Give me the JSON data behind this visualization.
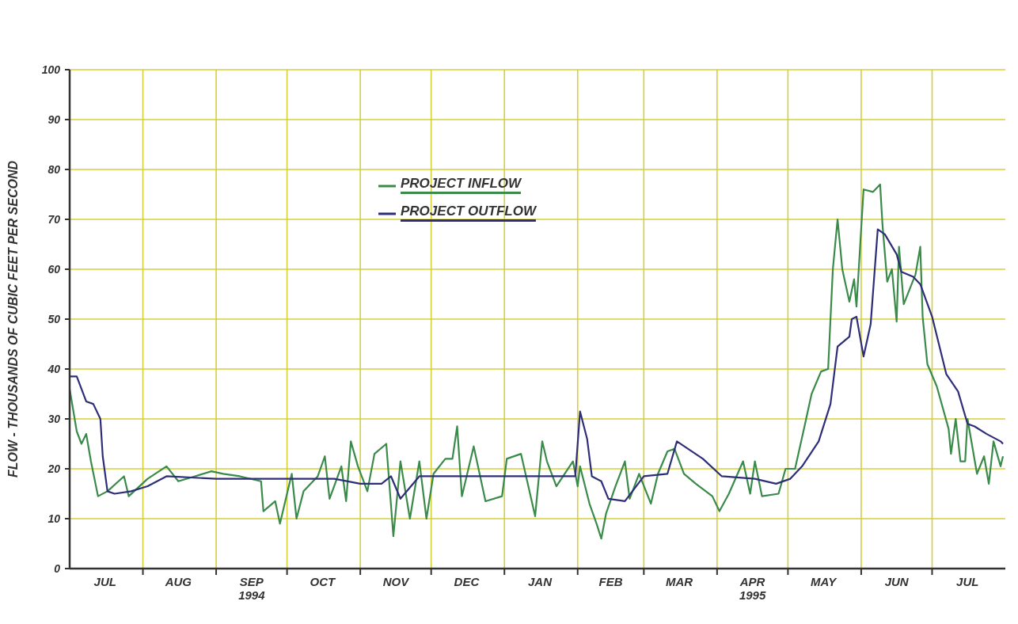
{
  "chart_data": {
    "type": "line",
    "ylabel": "FLOW - THOUSANDS OF CUBIC FEET PER SECOND",
    "xlim": [
      "1994-07-01",
      "1995-08-01"
    ],
    "xticks": [
      {
        "value": "1994-07-16",
        "label": "JUL"
      },
      {
        "value": "1994-08-01",
        "label": null
      },
      {
        "value": "1994-08-16",
        "label": "AUG"
      },
      {
        "value": "1994-09-01",
        "label": null
      },
      {
        "value": "1994-09-16",
        "label": "SEP\n1994"
      },
      {
        "value": "1994-10-01",
        "label": null
      },
      {
        "value": "1994-10-16",
        "label": "OCT"
      },
      {
        "value": "1994-11-01",
        "label": null
      },
      {
        "value": "1994-11-16",
        "label": "NOV"
      },
      {
        "value": "1994-12-01",
        "label": null
      },
      {
        "value": "1994-12-16",
        "label": "DEC"
      },
      {
        "value": "1995-01-01",
        "label": null
      },
      {
        "value": "1995-01-16",
        "label": "JAN"
      },
      {
        "value": "1995-02-01",
        "label": null
      },
      {
        "value": "1995-02-15",
        "label": "FEB"
      },
      {
        "value": "1995-03-01",
        "label": null
      },
      {
        "value": "1995-03-16",
        "label": "MAR"
      },
      {
        "value": "1995-04-01",
        "label": null
      },
      {
        "value": "1995-04-16",
        "label": "APR\n1995"
      },
      {
        "value": "1995-05-01",
        "label": null
      },
      {
        "value": "1995-05-16",
        "label": "MAY"
      },
      {
        "value": "1995-06-01",
        "label": null
      },
      {
        "value": "1995-06-16",
        "label": "JUN"
      },
      {
        "value": "1995-07-01",
        "label": null
      },
      {
        "value": "1995-07-16",
        "label": "JUL"
      }
    ],
    "ylim": [
      0,
      100
    ],
    "yticks": [
      0,
      10,
      20,
      30,
      40,
      50,
      60,
      70,
      80,
      90,
      100
    ],
    "grid": true,
    "legend": "top",
    "marker": "none",
    "line_style": "solid",
    "series": [
      {
        "name": "PROJECT INFLOW",
        "color": "#3a8a4a",
        "x": [
          "1994-07-01",
          "1994-07-04",
          "1994-07-06",
          "1994-07-08",
          "1994-07-10",
          "1994-07-13",
          "1994-07-17",
          "1994-07-24",
          "1994-07-26",
          "1994-08-03",
          "1994-08-11",
          "1994-08-16",
          "1994-08-23",
          "1994-08-30",
          "1994-09-04",
          "1994-09-11",
          "1994-09-20",
          "1994-09-21",
          "1994-09-26",
          "1994-09-28",
          "1994-10-03",
          "1994-10-05",
          "1994-10-08",
          "1994-10-14",
          "1994-10-17",
          "1994-10-19",
          "1994-10-24",
          "1994-10-26",
          "1994-10-28",
          "1994-10-31",
          "1994-11-04",
          "1994-11-07",
          "1994-11-12",
          "1994-11-15",
          "1994-11-18",
          "1994-11-22",
          "1994-11-26",
          "1994-11-29",
          "1994-12-02",
          "1994-12-07",
          "1994-12-10",
          "1994-12-12",
          "1994-12-14",
          "1994-12-19",
          "1994-12-24",
          "1994-12-31",
          "1995-01-02",
          "1995-01-08",
          "1995-01-14",
          "1995-01-17",
          "1995-01-19",
          "1995-01-23",
          "1995-01-30",
          "1995-02-01",
          "1995-02-02",
          "1995-02-06",
          "1995-02-09",
          "1995-02-11",
          "1995-02-13",
          "1995-02-17",
          "1995-02-21",
          "1995-02-23",
          "1995-02-27",
          "1995-03-04",
          "1995-03-07",
          "1995-03-11",
          "1995-03-14",
          "1995-03-18",
          "1995-03-23",
          "1995-03-30",
          "1995-04-02",
          "1995-04-06",
          "1995-04-12",
          "1995-04-15",
          "1995-04-17",
          "1995-04-20",
          "1995-04-27",
          "1995-04-30",
          "1995-05-04",
          "1995-05-08",
          "1995-05-11",
          "1995-05-15",
          "1995-05-18",
          "1995-05-20",
          "1995-05-22",
          "1995-05-24",
          "1995-05-27",
          "1995-05-29",
          "1995-05-30",
          "1995-06-02",
          "1995-06-06",
          "1995-06-09",
          "1995-06-10",
          "1995-06-12",
          "1995-06-14",
          "1995-06-16",
          "1995-06-17",
          "1995-06-19",
          "1995-06-24",
          "1995-06-26",
          "1995-06-27",
          "1995-06-29",
          "1995-07-03",
          "1995-07-08",
          "1995-07-09",
          "1995-07-11",
          "1995-07-13",
          "1995-07-15",
          "1995-07-16",
          "1995-07-20",
          "1995-07-23",
          "1995-07-25",
          "1995-07-27",
          "1995-07-30",
          "1995-07-31"
        ],
        "values": [
          36,
          27.5,
          25,
          27,
          21.5,
          14.5,
          15.5,
          18.5,
          14.5,
          18,
          20.5,
          17.5,
          18.5,
          19.5,
          19,
          18.5,
          17.5,
          11.5,
          13.5,
          9,
          19,
          10,
          15.5,
          18.5,
          22.5,
          14,
          20.5,
          13.5,
          25.5,
          20.5,
          15.5,
          23,
          25,
          6.5,
          21.5,
          10,
          21.5,
          10,
          19,
          22,
          22,
          28.5,
          14.5,
          24.5,
          13.5,
          14.5,
          22,
          23,
          10.5,
          25.5,
          21.5,
          16.5,
          21.5,
          16.5,
          20.5,
          13,
          9,
          6,
          11,
          16.5,
          21.5,
          14,
          19,
          13,
          19,
          23.5,
          24,
          19,
          17,
          14.5,
          11.5,
          15,
          21.5,
          15,
          21.5,
          14.5,
          15,
          20,
          20,
          28.5,
          35,
          39.5,
          40,
          60,
          70,
          60,
          53.5,
          58,
          52.5,
          76,
          75.5,
          77,
          69,
          57.5,
          60,
          49.5,
          64.5,
          53,
          59,
          64.5,
          50.5,
          41,
          36.5,
          28,
          23,
          30,
          21.5,
          21.5,
          30,
          19,
          22.5,
          17,
          25.5,
          20.5,
          22.5
        ]
      },
      {
        "name": "PROJECT OUTFLOW",
        "color": "#2e2e78",
        "x": [
          "1994-07-01",
          "1994-07-04",
          "1994-07-08",
          "1994-07-11",
          "1994-07-14",
          "1994-07-15",
          "1994-07-17",
          "1994-07-20",
          "1994-07-27",
          "1994-08-03",
          "1994-08-11",
          "1994-09-01",
          "1994-09-28",
          "1994-10-21",
          "1994-11-01",
          "1994-11-10",
          "1994-11-14",
          "1994-11-18",
          "1994-11-26",
          "1994-12-15",
          "1995-01-15",
          "1995-01-31",
          "1995-02-02",
          "1995-02-05",
          "1995-02-07",
          "1995-02-11",
          "1995-02-14",
          "1995-02-21",
          "1995-03-01",
          "1995-03-11",
          "1995-03-15",
          "1995-03-26",
          "1995-04-03",
          "1995-04-17",
          "1995-04-26",
          "1995-05-02",
          "1995-05-07",
          "1995-05-14",
          "1995-05-19",
          "1995-05-22",
          "1995-05-27",
          "1995-05-28",
          "1995-05-30",
          "1995-06-02",
          "1995-06-05",
          "1995-06-08",
          "1995-06-11",
          "1995-06-16",
          "1995-06-18",
          "1995-06-23",
          "1995-06-26",
          "1995-07-01",
          "1995-07-07",
          "1995-07-12",
          "1995-07-16",
          "1995-07-19",
          "1995-07-24",
          "1995-07-30",
          "1995-07-31"
        ],
        "values": [
          38.5,
          38.5,
          33.5,
          33,
          30,
          22.5,
          15.5,
          15,
          15.5,
          16.5,
          18.5,
          18,
          18,
          18,
          17,
          17,
          18.5,
          14,
          18.5,
          18.5,
          18.5,
          18.5,
          31.5,
          26,
          18.5,
          17.5,
          14,
          13.5,
          18.5,
          19,
          25.5,
          22,
          18.5,
          18,
          17,
          18,
          20.5,
          25.5,
          33,
          44.5,
          46.5,
          50,
          50.5,
          42.5,
          49,
          68,
          67,
          63,
          59.5,
          58.5,
          57,
          50.5,
          39,
          35.5,
          29,
          28.5,
          27,
          25.5,
          25
        ]
      }
    ]
  }
}
